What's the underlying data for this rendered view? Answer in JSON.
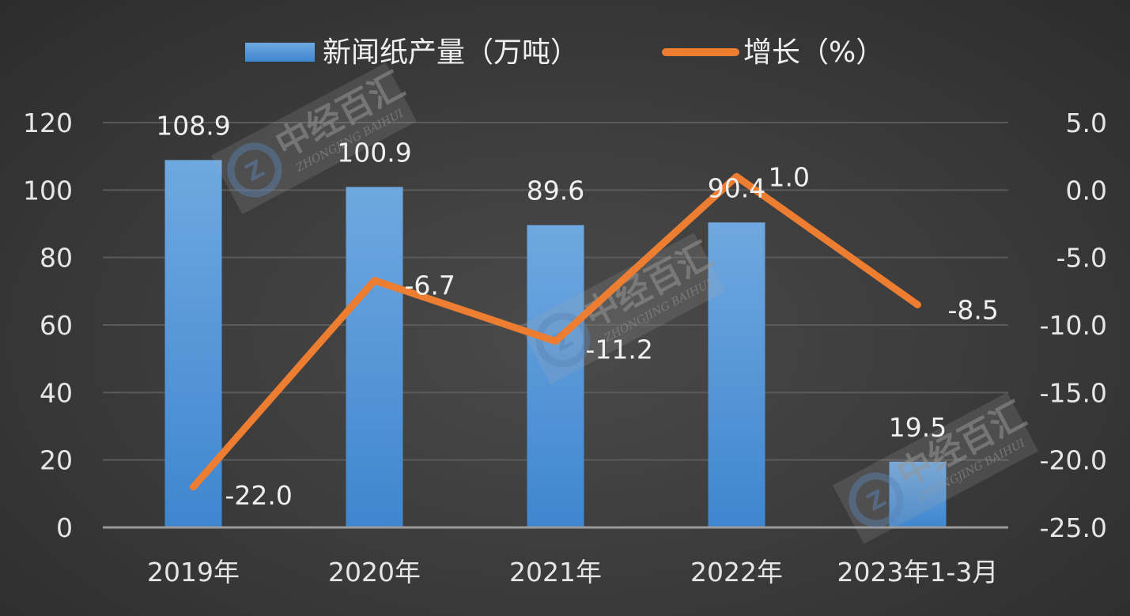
{
  "chart_data": {
    "type": "bar+line",
    "categories": [
      "2019年",
      "2020年",
      "2021年",
      "2022年",
      "2023年1-3月"
    ],
    "series": [
      {
        "name": "新闻纸产量（万吨）",
        "type": "bar",
        "axis": "left",
        "values": [
          108.9,
          100.9,
          89.6,
          90.4,
          19.5
        ],
        "labels": [
          "108.9",
          "100.9",
          "89.6",
          "90.4",
          "19.5"
        ],
        "color": "#5b9bd5"
      },
      {
        "name": "增长（%）",
        "type": "line",
        "axis": "right",
        "values": [
          -22.0,
          -6.7,
          -11.2,
          1.0,
          -8.5
        ],
        "labels": [
          "-22.0",
          "-6.7",
          "-11.2",
          "1.0",
          "-8.5"
        ],
        "color": "#ed7d31"
      }
    ],
    "y_left": {
      "min": 0,
      "max": 120,
      "ticks": [
        "0",
        "20",
        "40",
        "60",
        "80",
        "100",
        "120"
      ]
    },
    "y_right": {
      "min": -25,
      "max": 5,
      "ticks": [
        "-25.0",
        "-20.0",
        "-15.0",
        "-10.0",
        "-5.0",
        "0.0",
        "5.0"
      ]
    },
    "legend_position": "top",
    "grid": true
  },
  "watermark": {
    "cn": "中经百汇",
    "en": "ZHONGJING BAIHUI"
  },
  "colors": {
    "background": "#3a3a3a",
    "grid": "#5a5a5a",
    "axis": "#9a9a9a",
    "text": "#e6e6e6"
  }
}
